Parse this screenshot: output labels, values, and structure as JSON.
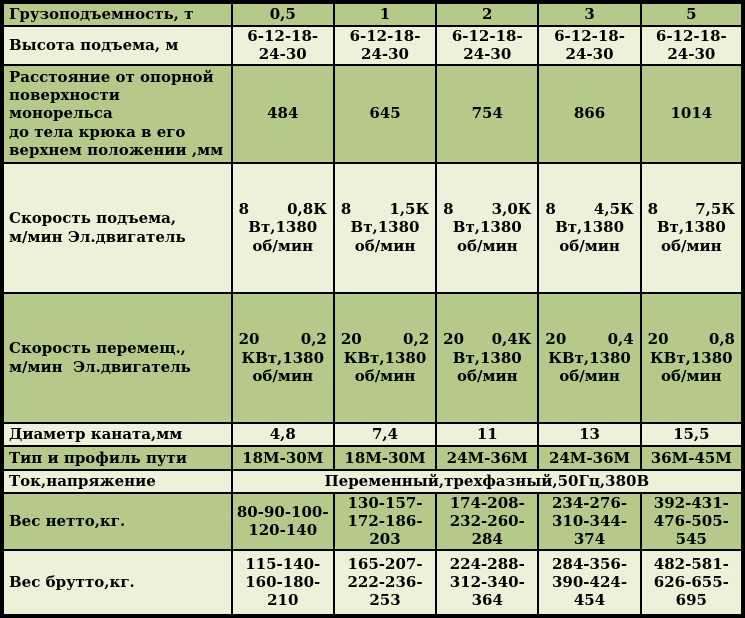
{
  "colors": {
    "row_dark": "#b5c98b",
    "row_light": "#eef1da",
    "border": "#000000",
    "text": "#000000"
  },
  "table": {
    "rows": [
      {
        "label": "Грузоподъемность, т",
        "values": [
          "0,5",
          "1",
          "2",
          "3",
          "5"
        ]
      },
      {
        "label": "Высота подъема, м",
        "values": [
          "6-12-18-\n24-30",
          "6-12-18-\n24-30",
          "6-12-18-\n24-30",
          "6-12-18-\n24-30",
          "6-12-18-\n24-30"
        ]
      },
      {
        "label": "Расстояние от опорной\nповерхности монорельса\nдо тела крюка в его\nверхнем положении ,мм",
        "values": [
          "484",
          "645",
          "754",
          "866",
          "1014"
        ]
      },
      {
        "label": "Скорость подъема,\nм/мин Эл.двигатель",
        "cells": [
          {
            "a": "8",
            "b": "0,8К",
            "rest": "Вт,1380\nоб/мин"
          },
          {
            "a": "8",
            "b": "1,5К",
            "rest": "Вт,1380\nоб/мин"
          },
          {
            "a": "8",
            "b": "3,0К",
            "rest": "Вт,1380\nоб/мин"
          },
          {
            "a": "8",
            "b": "4,5К",
            "rest": "Вт,1380\nоб/мин"
          },
          {
            "a": "8",
            "b": "7,5К",
            "rest": "Вт,1380\nоб/мин"
          }
        ]
      },
      {
        "label": "Скорость перемещ.,\nм/мин  Эл.двигатель",
        "cells": [
          {
            "a": "20",
            "b": "0,2",
            "rest": "КВт,1380\nоб/мин"
          },
          {
            "a": "20",
            "b": "0,2",
            "rest": "КВт,1380\nоб/мин"
          },
          {
            "a": "20",
            "b": "0,4К",
            "rest": "Вт,1380\nоб/мин"
          },
          {
            "a": "20",
            "b": "0,4",
            "rest": "КВт,1380\nоб/мин"
          },
          {
            "a": "20",
            "b": "0,8",
            "rest": "КВт,1380\nоб/мин"
          }
        ]
      },
      {
        "label": "Диаметр каната,мм",
        "values": [
          "4,8",
          "7,4",
          "11",
          "13",
          "15,5"
        ]
      },
      {
        "label": "Тип и профиль пути",
        "values": [
          "18М-30М",
          "18М-30М",
          "24М-36М",
          "24М-36М",
          "36М-45М"
        ]
      },
      {
        "label": "Ток,напряжение",
        "merged": "Переменный,трехфазный,50Гц,380В"
      },
      {
        "label": "Вес нетто,кг.",
        "values": [
          "80-90-100-\n120-140",
          "130-157-\n172-186-\n203",
          "174-208-\n232-260-\n284",
          "234-276-\n310-344-\n374",
          "392-431-\n476-505-\n545"
        ]
      },
      {
        "label": "Вес брутто,кг.",
        "values": [
          "115-140-\n160-180-\n210",
          "165-207-\n222-236-\n253",
          "224-288-\n312-340-\n364",
          "284-356-\n390-424-\n454",
          "482-581-\n626-655-\n695"
        ]
      }
    ]
  }
}
